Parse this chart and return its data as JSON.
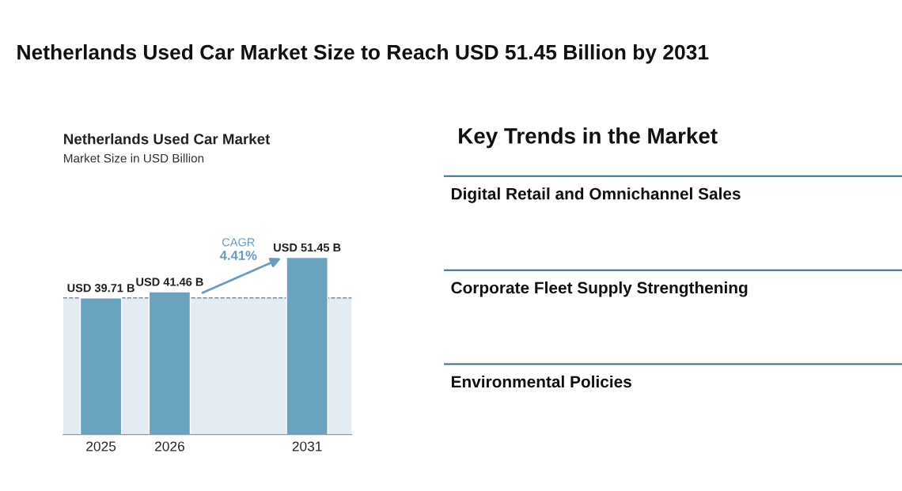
{
  "chart_data": [
    {
      "type": "bar",
      "title": "Netherlands Used Car Market",
      "subtitle": "Market Size in USD Billion",
      "categories": [
        "2025",
        "2026",
        null,
        "2031"
      ],
      "values": [
        39.71,
        41.46,
        null,
        51.45
      ],
      "value_labels": [
        "USD 39.71 B",
        "USD 41.46 B",
        null,
        "USD 51.45 B"
      ],
      "color": "#6aa3c0",
      "ref_lines": [
        {
          "axis": "y",
          "value": 39.71,
          "color": "#7f8c99",
          "line_style": "dashed"
        }
      ],
      "bands": [
        {
          "axis": "y",
          "from": 0,
          "to": 39.71,
          "color": "#e3ebf3"
        }
      ],
      "annotations": [
        "Netherlands Used Car Market Size to Reach USD 51.45 Billion by 2031",
        "CAGR",
        "4.41%"
      ],
      "grid": false,
      "legend": false
    },
    {
      "type": "other",
      "title": "Key Trends in the Market",
      "annotations": [
        "Digital Retail and Omnichannel Sales",
        "Corporate Fleet Supply Strengthening",
        "Environmental Policies"
      ]
    }
  ]
}
